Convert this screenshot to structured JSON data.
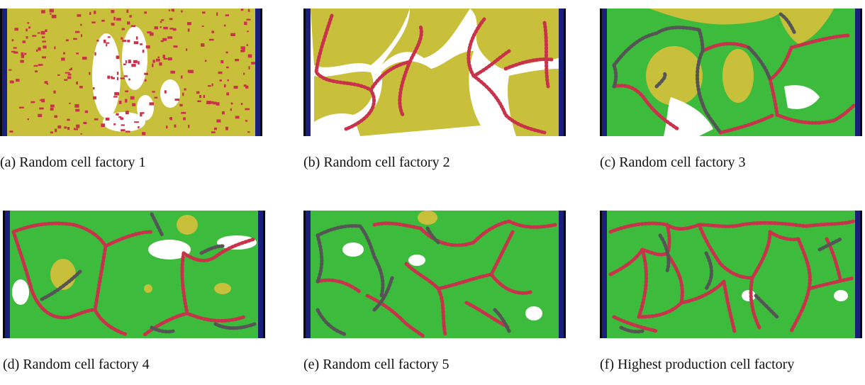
{
  "panels": [
    {
      "caption": "(a) Random cell factory 1",
      "pattern": "random-dots",
      "colors": {
        "matrix": "#c8bf3a",
        "boundary": "#c8324a",
        "void": "#ffffff"
      }
    },
    {
      "caption": "(b) Random cell factory 2",
      "pattern": "yellow-cells",
      "colors": {
        "matrix": "#c8bf3a",
        "boundary": "#c8324a",
        "void": "#ffffff"
      }
    },
    {
      "caption": "(c) Random cell factory 3",
      "pattern": "green-yellow-cells",
      "colors": {
        "matrix": "#3cbb3c",
        "core": "#c8bf3a",
        "boundary": "#c8324a",
        "secondary": "#555555"
      }
    },
    {
      "caption": "(d) Random cell factory 4",
      "pattern": "green-cells",
      "colors": {
        "matrix": "#3cbb3c",
        "core": "#c8bf3a",
        "boundary": "#c8324a",
        "secondary": "#555555"
      }
    },
    {
      "caption": "(e) Random cell factory 5",
      "pattern": "green-cells-fine",
      "colors": {
        "matrix": "#3cbb3c",
        "core": "#c8bf3a",
        "boundary": "#c8324a",
        "secondary": "#555555"
      }
    },
    {
      "caption": "(f) Highest production cell factory",
      "pattern": "green-network",
      "colors": {
        "matrix": "#3cbb3c",
        "boundary": "#c8324a",
        "secondary": "#555555"
      }
    }
  ],
  "walls": {
    "color": "#1a1f7a",
    "edge": "#0a0a0a"
  }
}
